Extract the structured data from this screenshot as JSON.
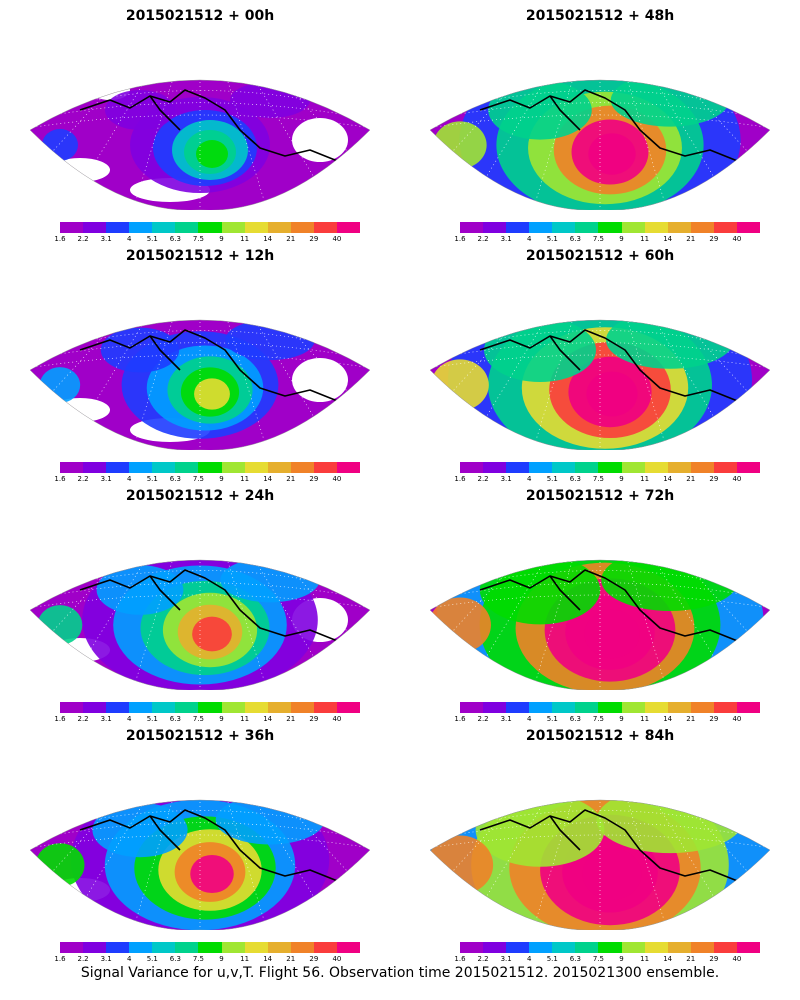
{
  "caption": "Signal Variance for u,v,T. Flight 56. Observation time 2015021512. 2015021300 ensemble.",
  "colorbar": {
    "labels": [
      "1.6",
      "2.2",
      "3.1",
      "4",
      "5.1",
      "6.3",
      "7.5",
      "9",
      "11",
      "14",
      "21",
      "29",
      "40"
    ],
    "colors": [
      "#a000c8",
      "#7f00e0",
      "#1e3cff",
      "#00a0ff",
      "#00c8c8",
      "#00d28c",
      "#00dc00",
      "#a0e632",
      "#e6dc32",
      "#e6af2d",
      "#f08228",
      "#fa3c3c",
      "#f00082"
    ]
  },
  "panels": [
    {
      "title": "2015021512 + 00h",
      "intensity": 0
    },
    {
      "title": "2015021512 + 12h",
      "intensity": 1
    },
    {
      "title": "2015021512 + 24h",
      "intensity": 2
    },
    {
      "title": "2015021512 + 36h",
      "intensity": 3
    },
    {
      "title": "2015021512 + 48h",
      "intensity": 4
    },
    {
      "title": "2015021512 + 60h",
      "intensity": 5
    },
    {
      "title": "2015021512 + 72h",
      "intensity": 6
    },
    {
      "title": "2015021512 + 84h",
      "intensity": 7
    }
  ]
}
